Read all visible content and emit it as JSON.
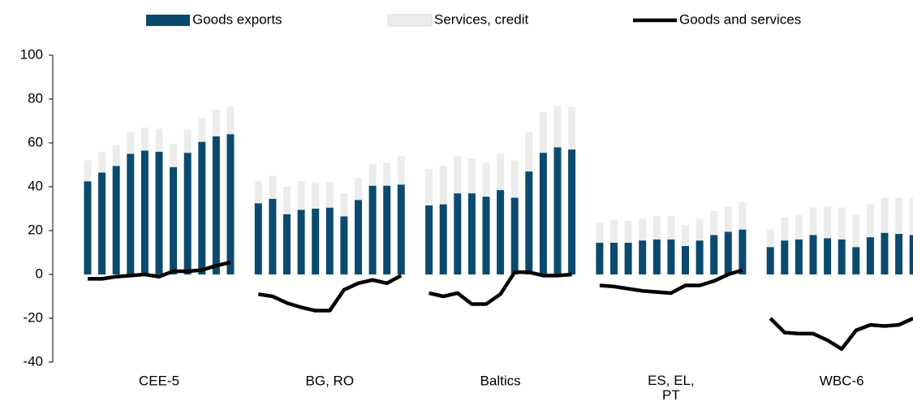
{
  "chart_data": {
    "type": "bar",
    "stacked": true,
    "categories": [
      "CEE-5",
      "BG, RO",
      "Baltics",
      "ES, EL, PT",
      "WBC-6"
    ],
    "ylim": [
      -40,
      100
    ],
    "yticks": [
      -40,
      -20,
      0,
      20,
      40,
      60,
      80,
      100
    ],
    "grid": false,
    "series": [
      {
        "name": "Goods exports",
        "type": "bar",
        "color": "#0b4a6f",
        "values": [
          [
            42.5,
            46.5,
            49.5,
            55,
            56.5,
            56,
            49,
            55.5,
            60.5,
            63,
            64
          ],
          [
            32.5,
            34.5,
            27.5,
            29.5,
            30,
            30.5,
            26.5,
            34,
            40.5,
            40.5,
            41
          ],
          [
            31.5,
            32,
            37,
            37,
            35.5,
            38.5,
            35,
            47,
            55.5,
            58,
            57
          ],
          [
            14.5,
            14.5,
            14.5,
            15.5,
            16,
            16,
            13,
            15.5,
            18,
            19.5,
            20.5
          ],
          [
            12.5,
            15.5,
            16,
            18,
            16.5,
            16,
            12.5,
            17,
            19,
            18.5,
            18
          ]
        ]
      },
      {
        "name": "Services, credit",
        "type": "bar",
        "color": "#ececec",
        "values": [
          [
            9.5,
            9.5,
            9.5,
            10,
            10.5,
            10.5,
            10.5,
            10.5,
            11,
            12,
            12.5
          ],
          [
            10,
            10.5,
            12.5,
            13,
            12,
            11.5,
            10.5,
            10,
            10,
            10.5,
            13
          ],
          [
            16.5,
            17.5,
            17,
            16,
            15.5,
            16.5,
            17,
            18,
            18.5,
            19,
            19.5
          ],
          [
            9,
            10.5,
            10,
            10,
            10.5,
            10.5,
            9.5,
            10,
            11,
            11.5,
            12.5
          ],
          [
            8,
            10.5,
            11,
            12.5,
            14.5,
            14.5,
            15,
            15,
            16,
            16.5,
            17
          ]
        ]
      },
      {
        "name": "Goods and services",
        "type": "line",
        "color": "#000000",
        "values": [
          [
            -2,
            -2,
            -1,
            -0.5,
            0,
            -1,
            1.5,
            1.5,
            2,
            4,
            5.5
          ],
          [
            -9,
            -10,
            -13,
            -15,
            -16.5,
            -16.5,
            -7,
            -4,
            -2.5,
            -4,
            -0.5
          ],
          [
            -8.5,
            -10,
            -8.5,
            -13.5,
            -13.5,
            -9,
            1,
            1,
            -0.5,
            -0.5,
            0
          ],
          [
            -5,
            -5.5,
            -6.5,
            -7.5,
            -8,
            -8.5,
            -5,
            -5,
            -3,
            0,
            2
          ],
          [
            -20,
            -26.5,
            -27,
            -27,
            -30,
            -34,
            -25.5,
            -23,
            -23.5,
            -23,
            -20
          ]
        ]
      }
    ]
  }
}
